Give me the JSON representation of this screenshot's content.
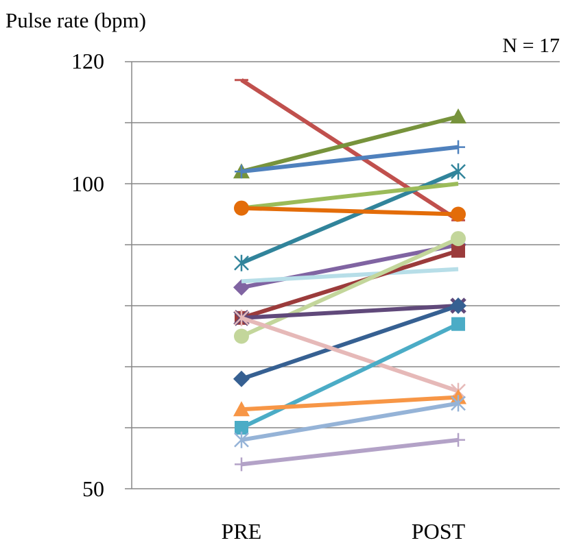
{
  "chart_data": {
    "type": "line",
    "ylabel": "Pulse rate (bpm)",
    "annotation": "N = 17",
    "categories": [
      "PRE",
      "POST"
    ],
    "y_tick_labels": [
      "50",
      "100",
      "120"
    ],
    "ylim": [
      50,
      120
    ],
    "y_gridlines": [
      50,
      60,
      70,
      80,
      90,
      100,
      110,
      120
    ],
    "grid": true,
    "series": [
      {
        "values": [
          117,
          94
        ],
        "color": "#c0504d",
        "marker": "dash"
      },
      {
        "values": [
          102,
          111
        ],
        "color": "#77933c",
        "marker": "triangle"
      },
      {
        "values": [
          102,
          106
        ],
        "color": "#4f81bd",
        "marker": "plus"
      },
      {
        "values": [
          87,
          102
        ],
        "color": "#31849b",
        "marker": "star"
      },
      {
        "values": [
          96,
          100
        ],
        "color": "#9bbb59",
        "marker": "none"
      },
      {
        "values": [
          96,
          95
        ],
        "color": "#e36c09",
        "marker": "circle"
      },
      {
        "values": [
          83,
          90
        ],
        "color": "#8064a2",
        "marker": "diamond"
      },
      {
        "values": [
          84,
          86
        ],
        "color": "#b7dee8",
        "marker": "none"
      },
      {
        "values": [
          78,
          89
        ],
        "color": "#9b3b3b",
        "marker": "square"
      },
      {
        "values": [
          75,
          91
        ],
        "color": "#c3d69b",
        "marker": "circle"
      },
      {
        "values": [
          78,
          80
        ],
        "color": "#60497a",
        "marker": "x"
      },
      {
        "values": [
          68,
          80
        ],
        "color": "#366092",
        "marker": "diamond"
      },
      {
        "values": [
          78,
          66
        ],
        "color": "#e6b9b8",
        "marker": "star"
      },
      {
        "values": [
          60,
          77
        ],
        "color": "#4bacc6",
        "marker": "square"
      },
      {
        "values": [
          63,
          65
        ],
        "color": "#f79646",
        "marker": "triangle"
      },
      {
        "values": [
          58,
          64
        ],
        "color": "#95b3d7",
        "marker": "star"
      },
      {
        "values": [
          54,
          58
        ],
        "color": "#b3a2c7",
        "marker": "plus"
      }
    ]
  }
}
